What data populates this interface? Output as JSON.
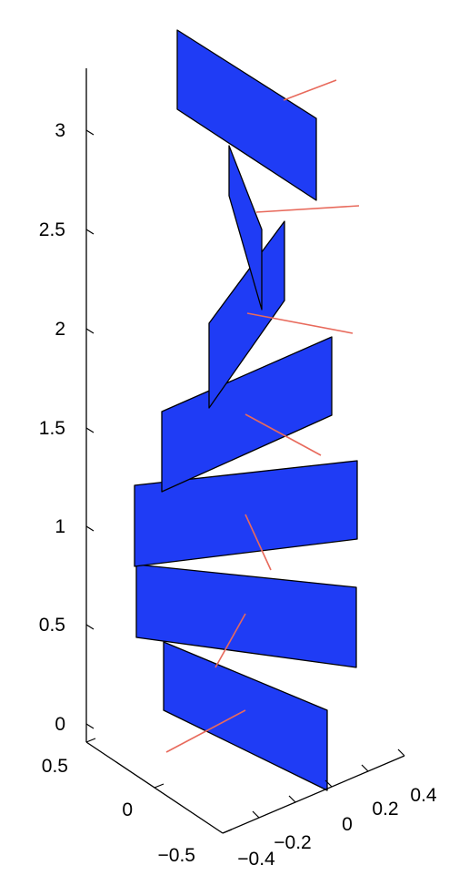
{
  "chart_data": {
    "type": "3d-surface",
    "description_free": true,
    "z_axis": {
      "ticks": [
        "0",
        "0.5",
        "1",
        "1.5",
        "2",
        "2.5",
        "3"
      ],
      "range": [
        0,
        3.2
      ]
    },
    "y_axis": {
      "ticks": [
        "0.5",
        "0",
        "−0.5"
      ],
      "range": [
        -0.5,
        0.5
      ]
    },
    "x_axis": {
      "ticks": [
        "−0.4",
        "−0.2",
        "0",
        "0.2",
        "0.4"
      ],
      "range": [
        -0.4,
        0.4
      ]
    },
    "grid": false,
    "colors": {
      "panel_fill": "#1f3cf5",
      "panel_edge": "#000000",
      "normal_line": "#e86a5c",
      "axis": "#000000"
    },
    "panels": [
      {
        "index": 1,
        "z": 0.25
      },
      {
        "index": 2,
        "z": 0.75
      },
      {
        "index": 3,
        "z": 1.25
      },
      {
        "index": 4,
        "z": 1.75
      },
      {
        "index": 5,
        "z": 2.25
      },
      {
        "index": 6,
        "z": 2.75
      },
      {
        "index": 7,
        "z": 3.0
      }
    ]
  }
}
